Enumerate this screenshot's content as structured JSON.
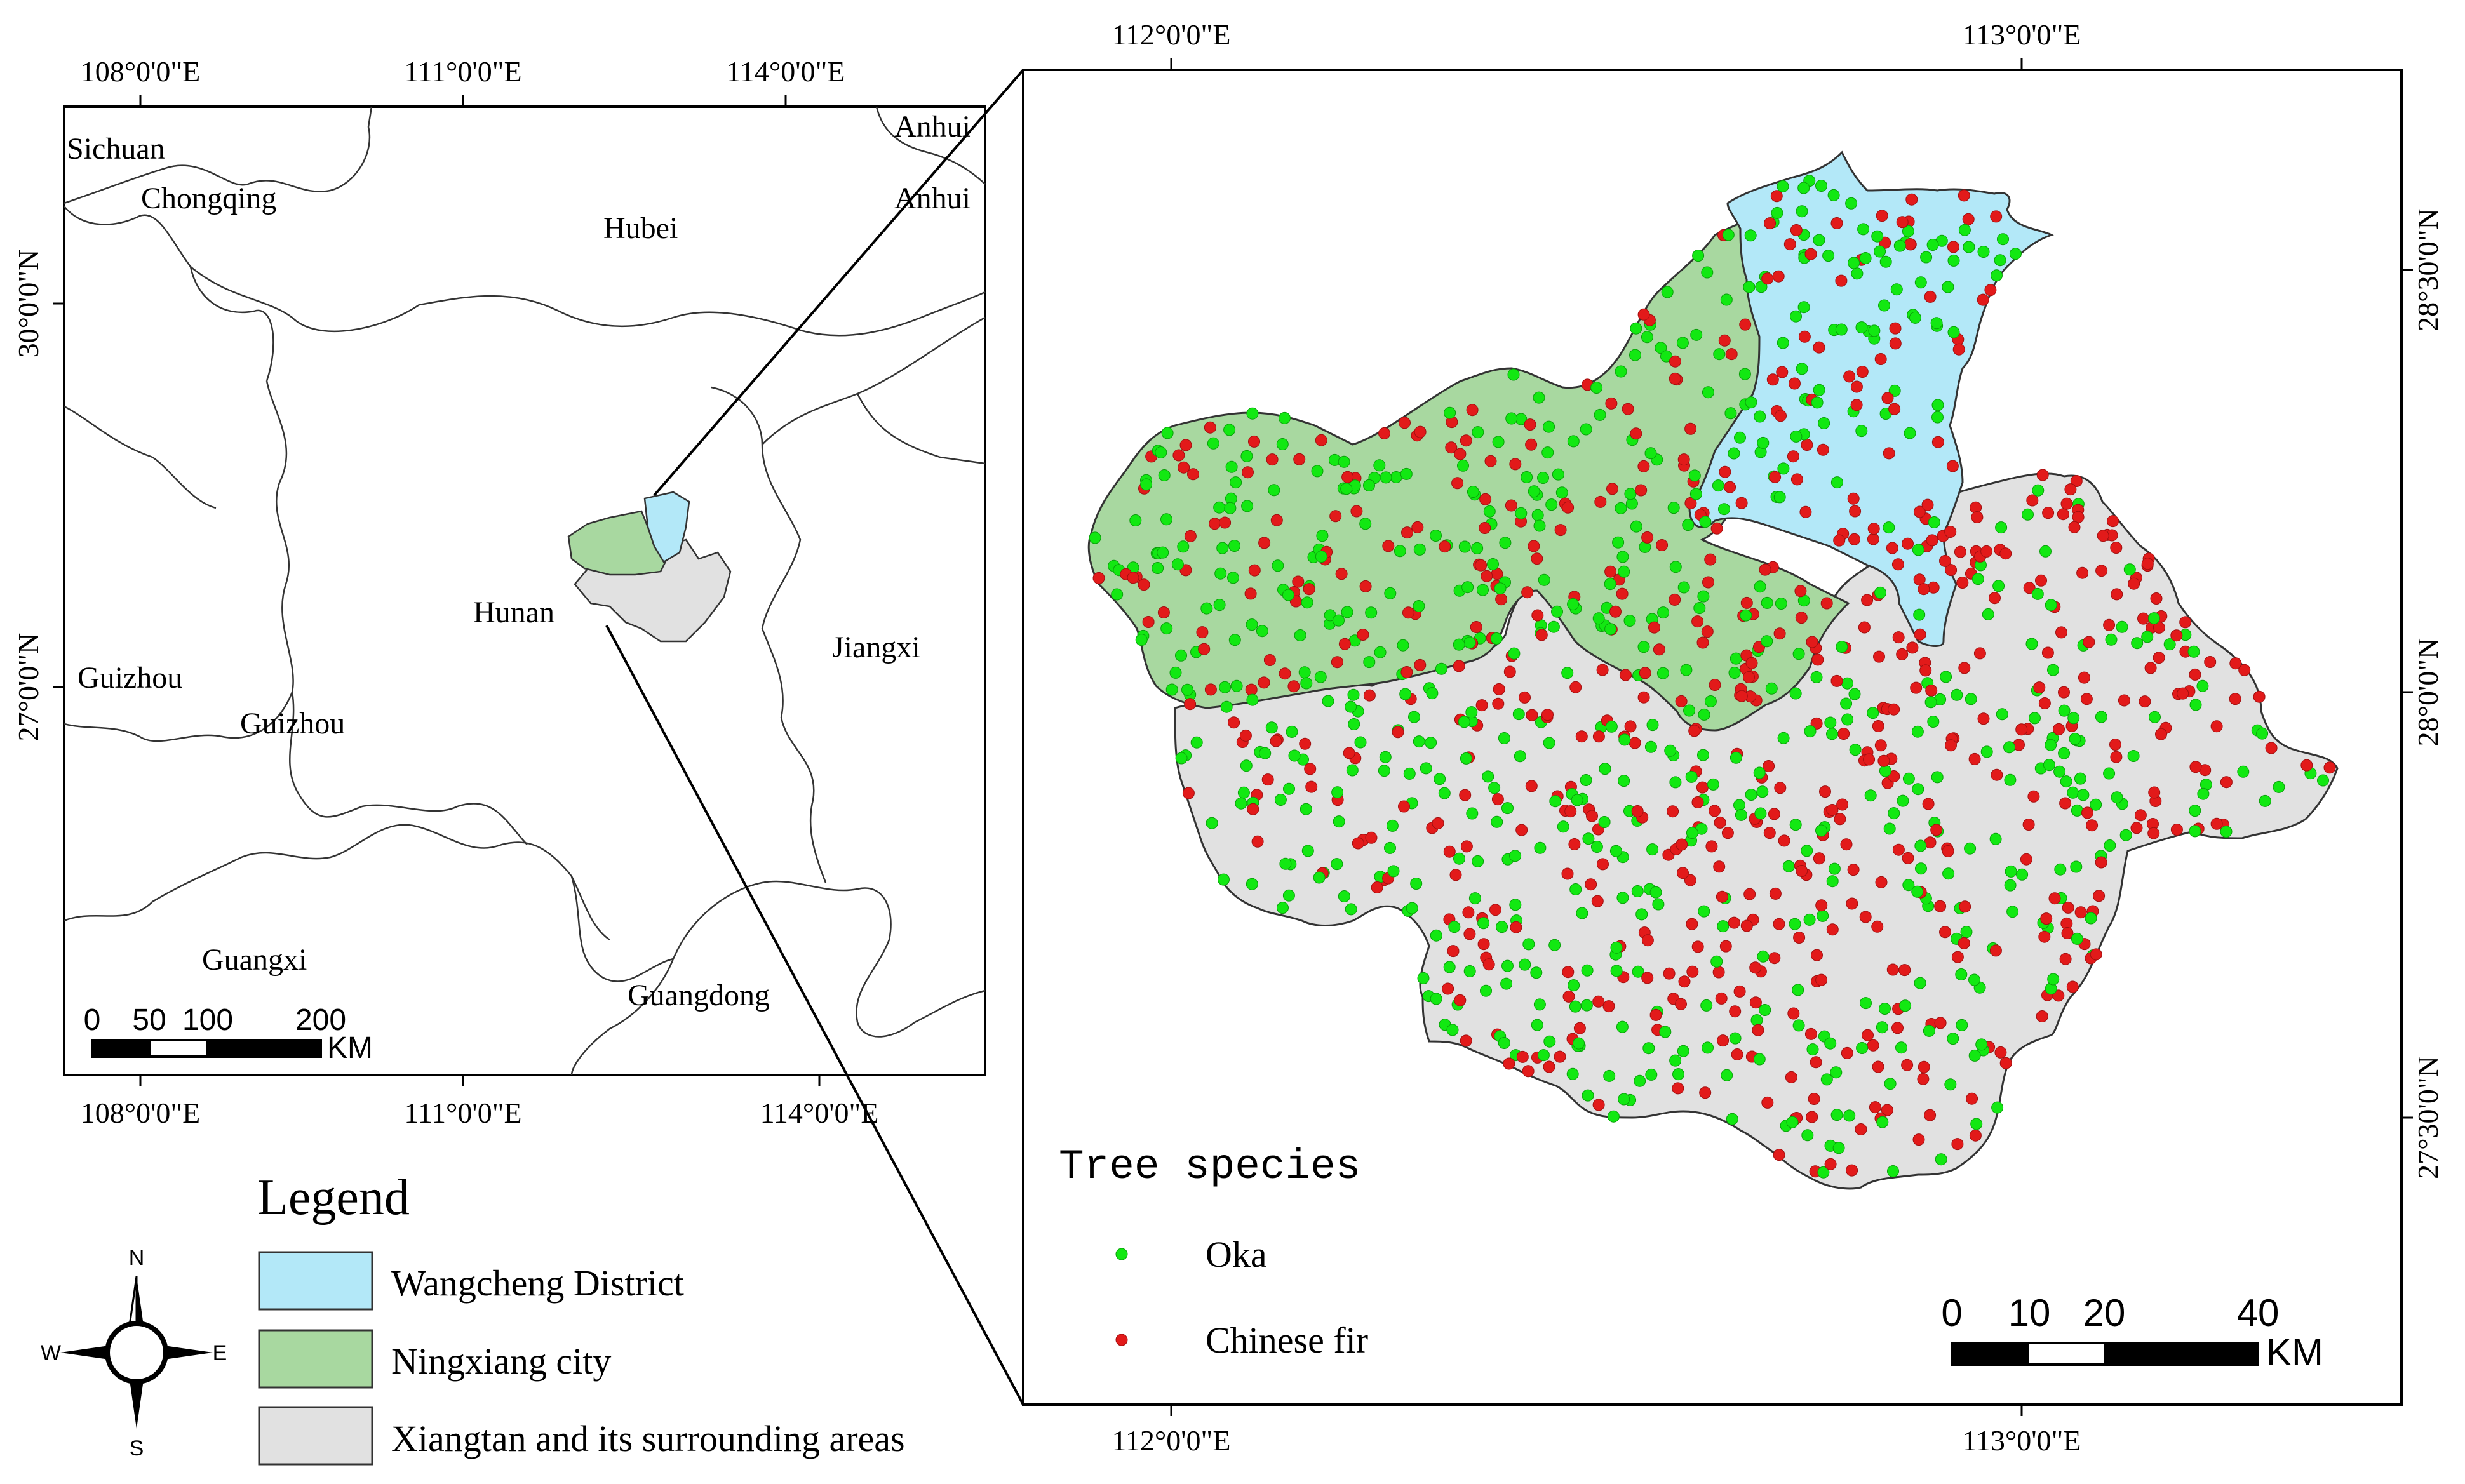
{
  "overview_map": {
    "top_ticks": [
      "108°0'0\"E",
      "111°0'0\"E",
      "114°0'0\"E"
    ],
    "bottom_ticks": [
      "108°0'0\"E",
      "111°0'0\"E",
      "114°0'0\"E"
    ],
    "left_ticks": [
      "30°0'0\"N",
      "27°0'0\"N"
    ],
    "province_labels": {
      "sichuan": "Sichuan",
      "chongqing": "Chongqing",
      "hubei": "Hubei",
      "anhui_1": "Anhui",
      "anhui_2": "Anhui",
      "guizhou_1": "Guizhou",
      "guizhou_2": "Guizhou",
      "hunan": "Hunan",
      "jiangxi": "Jiangxi",
      "guangxi": "Guangxi",
      "guangdong": "Guangdong"
    },
    "scale_bar": {
      "labels": [
        "0",
        "50",
        "100",
        "200"
      ],
      "unit": "KM"
    }
  },
  "detail_map": {
    "top_ticks": [
      "112°0'0\"E",
      "113°0'0\"E"
    ],
    "bottom_ticks": [
      "112°0'0\"E",
      "113°0'0\"E"
    ],
    "right_ticks": [
      "28°30'0\"N",
      "28°0'0\"N",
      "27°30'0\"N"
    ],
    "species_legend": {
      "title": "Tree species",
      "items": [
        {
          "label": "Oka",
          "color": "#12e812"
        },
        {
          "label": "Chinese fir",
          "color": "#e21a1a"
        }
      ]
    },
    "scale_bar": {
      "labels": [
        "0",
        "10",
        "20",
        "40"
      ],
      "unit": "KM"
    }
  },
  "legend": {
    "title": "Legend",
    "items": [
      {
        "label": "Wangcheng District",
        "color": "#b3e8f8"
      },
      {
        "label": "Ningxiang city",
        "color": "#a8d8a0"
      },
      {
        "label": "Xiangtan and its surrounding areas",
        "color": "#e1e1e1"
      }
    ]
  },
  "north_arrow": {
    "n": "N",
    "s": "S",
    "e": "E",
    "w": "W"
  }
}
